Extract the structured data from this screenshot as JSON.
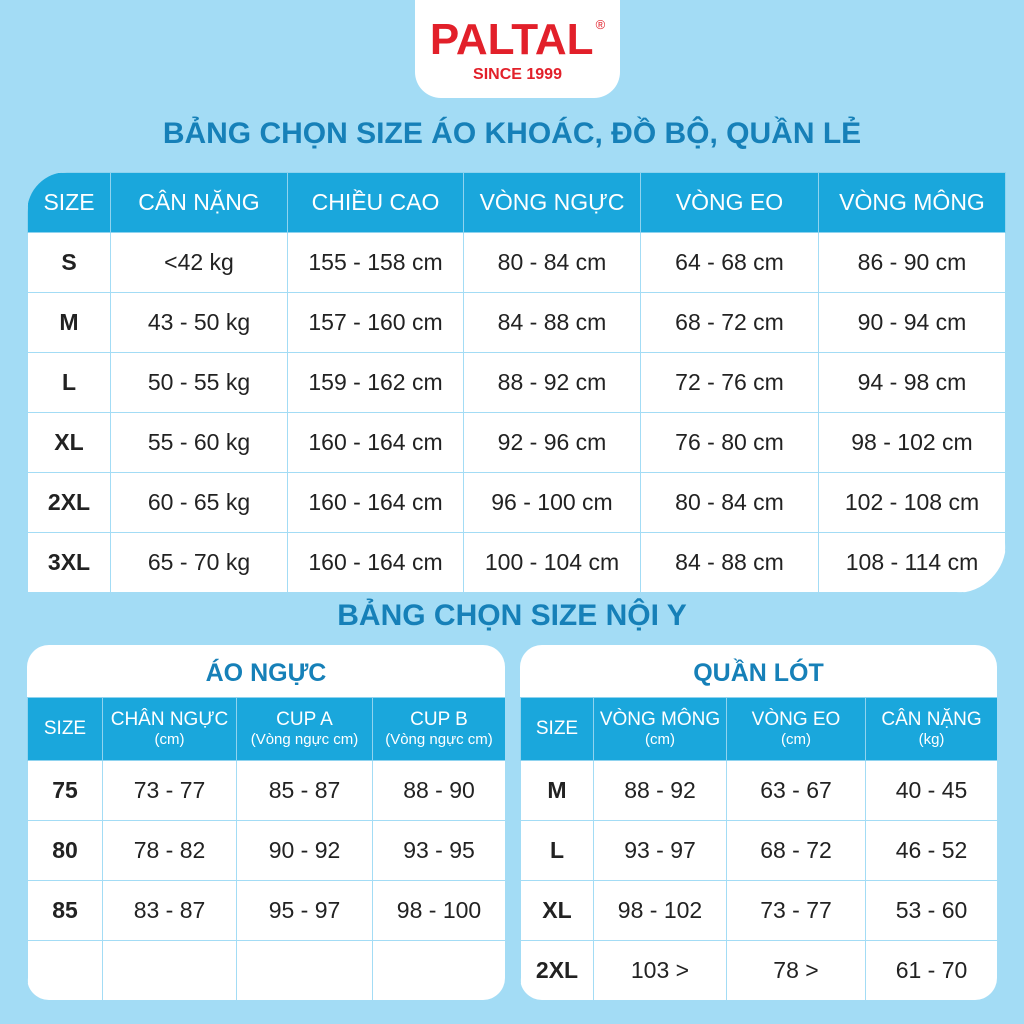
{
  "logo": {
    "brand": "PALTAL",
    "registered": "®",
    "since": "SINCE 1999"
  },
  "colors": {
    "background": "#a3dcf5",
    "header": "#1aa7dc",
    "title": "#1680b8",
    "logo": "#e2202a"
  },
  "title1": "BẢNG CHỌN SIZE ÁO KHOÁC, ĐỒ BỘ, QUẦN LẺ",
  "main": {
    "headers": [
      "SIZE",
      "CÂN NẶNG",
      "CHIỀU CAO",
      "VÒNG NGỰC",
      "VÒNG EO",
      "VÒNG MÔNG"
    ],
    "rows": [
      [
        "S",
        "<42 kg",
        "155 - 158 cm",
        "80 - 84 cm",
        "64 - 68 cm",
        "86 - 90 cm"
      ],
      [
        "M",
        "43 - 50 kg",
        "157 - 160 cm",
        "84 - 88 cm",
        "68 - 72 cm",
        "90 - 94 cm"
      ],
      [
        "L",
        "50 - 55 kg",
        "159 - 162 cm",
        "88 - 92 cm",
        "72 - 76 cm",
        "94 - 98 cm"
      ],
      [
        "XL",
        "55 - 60 kg",
        "160 - 164 cm",
        "92 - 96 cm",
        "76 - 80 cm",
        "98 - 102 cm"
      ],
      [
        "2XL",
        "60 - 65 kg",
        "160 - 164 cm",
        "96 - 100 cm",
        "80 - 84 cm",
        "102 - 108 cm"
      ],
      [
        "3XL",
        "65 - 70 kg",
        "160 - 164 cm",
        "100 - 104 cm",
        "84 - 88 cm",
        "108 - 114 cm"
      ]
    ]
  },
  "title2": "BẢNG CHỌN SIZE NỘI Y",
  "bra": {
    "title": "ÁO NGỰC",
    "headers": [
      {
        "main": "SIZE",
        "sub": ""
      },
      {
        "main": "CHÂN NGỰC",
        "sub": "(cm)"
      },
      {
        "main": "CUP A",
        "sub": "(Vòng ngực cm)"
      },
      {
        "main": "CUP B",
        "sub": "(Vòng ngực cm)"
      }
    ],
    "rows": [
      [
        "75",
        "73 - 77",
        "85 - 87",
        "88 - 90"
      ],
      [
        "80",
        "78 - 82",
        "90 - 92",
        "93 - 95"
      ],
      [
        "85",
        "83 - 87",
        "95 - 97",
        "98 - 100"
      ],
      [
        "",
        "",
        "",
        ""
      ]
    ]
  },
  "panty": {
    "title": "QUẦN LÓT",
    "headers": [
      {
        "main": "SIZE",
        "sub": ""
      },
      {
        "main": "VÒNG MÔNG",
        "sub": "(cm)"
      },
      {
        "main": "VÒNG  EO",
        "sub": "(cm)"
      },
      {
        "main": "CÂN NẶNG",
        "sub": "(kg)"
      }
    ],
    "rows": [
      [
        "M",
        "88 - 92",
        "63 - 67",
        "40 - 45"
      ],
      [
        "L",
        "93 - 97",
        "68 - 72",
        "46 - 52"
      ],
      [
        "XL",
        "98 - 102",
        "73 - 77",
        "53 - 60"
      ],
      [
        "2XL",
        "103 >",
        "78 >",
        "61 - 70"
      ]
    ]
  }
}
